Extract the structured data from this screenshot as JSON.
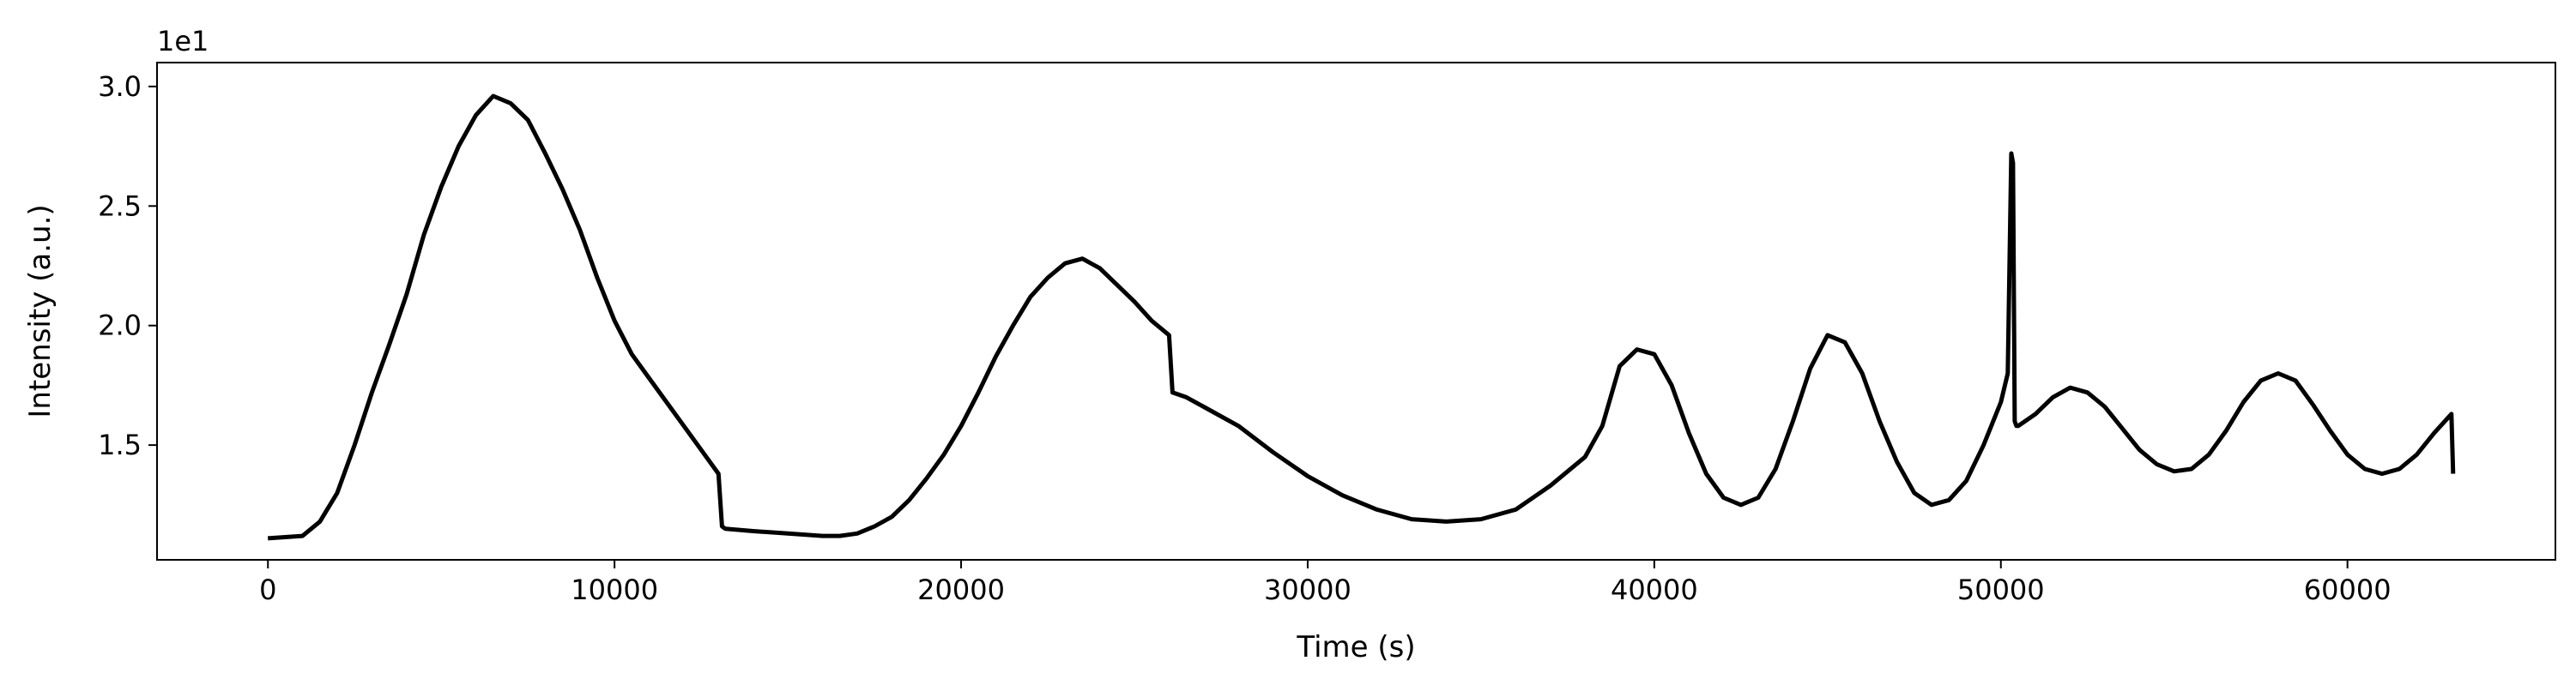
{
  "chart_data": {
    "type": "line",
    "title": "",
    "xlabel": "Time (s)",
    "ylabel": "Intensity (a.u.)",
    "y_offset_label": "1e1",
    "xlim": [
      -3200,
      66000
    ],
    "ylim": [
      1.02,
      3.1
    ],
    "x_ticks": [
      0,
      10000,
      20000,
      30000,
      40000,
      50000,
      60000
    ],
    "x_tick_labels": [
      "0",
      "10000",
      "20000",
      "30000",
      "40000",
      "50000",
      "60000"
    ],
    "y_ticks": [
      1.5,
      2.0,
      2.5,
      3.0
    ],
    "y_tick_labels": [
      "1.5",
      "2.0",
      "2.5",
      "3.0"
    ],
    "grid": false,
    "legend": "none",
    "line_color": "#000000",
    "series": [
      {
        "x": [
          0,
          1000,
          1500,
          2000,
          2500,
          3000,
          3500,
          4000,
          4500,
          5000,
          5500,
          6000,
          6500,
          7000,
          7500,
          8000,
          8500,
          9000,
          9500,
          10000,
          10500,
          11000,
          11500,
          12000,
          12500,
          13000,
          13100,
          13200,
          14000,
          15000,
          16000,
          16500,
          17000,
          17500,
          18000,
          18500,
          19000,
          19500,
          20000,
          20500,
          21000,
          21500,
          22000,
          22500,
          23000,
          23500,
          24000,
          24500,
          25000,
          25500,
          26000,
          26100,
          26500,
          27000,
          28000,
          29000,
          30000,
          31000,
          32000,
          33000,
          34000,
          35000,
          36000,
          37000,
          38000,
          38500,
          39000,
          39500,
          40000,
          40500,
          41000,
          41500,
          42000,
          42500,
          43000,
          43500,
          44000,
          44500,
          45000,
          45500,
          46000,
          46500,
          47000,
          47500,
          48000,
          48500,
          49000,
          49500,
          50000,
          50200,
          50300,
          50350,
          50400,
          50450,
          50500,
          51000,
          51500,
          52000,
          52500,
          53000,
          53500,
          54000,
          54500,
          55000,
          55500,
          56000,
          56500,
          57000,
          57500,
          58000,
          58500,
          59000,
          59500,
          60000,
          60500,
          61000,
          61500,
          62000,
          62500,
          63000,
          63050
        ],
        "y": [
          1.11,
          1.12,
          1.18,
          1.3,
          1.5,
          1.72,
          1.92,
          2.13,
          2.38,
          2.58,
          2.75,
          2.88,
          2.96,
          2.93,
          2.86,
          2.72,
          2.57,
          2.4,
          2.2,
          2.02,
          1.88,
          1.78,
          1.68,
          1.58,
          1.48,
          1.38,
          1.16,
          1.15,
          1.14,
          1.13,
          1.12,
          1.12,
          1.13,
          1.16,
          1.2,
          1.27,
          1.36,
          1.46,
          1.58,
          1.72,
          1.87,
          2.0,
          2.12,
          2.2,
          2.26,
          2.28,
          2.24,
          2.17,
          2.1,
          2.02,
          1.96,
          1.72,
          1.7,
          1.66,
          1.58,
          1.47,
          1.37,
          1.29,
          1.23,
          1.19,
          1.18,
          1.19,
          1.23,
          1.33,
          1.45,
          1.58,
          1.83,
          1.9,
          1.88,
          1.75,
          1.55,
          1.38,
          1.28,
          1.25,
          1.28,
          1.4,
          1.6,
          1.82,
          1.96,
          1.93,
          1.8,
          1.6,
          1.43,
          1.3,
          1.25,
          1.27,
          1.35,
          1.5,
          1.68,
          1.8,
          2.72,
          2.68,
          1.6,
          1.58,
          1.58,
          1.63,
          1.7,
          1.74,
          1.72,
          1.66,
          1.57,
          1.48,
          1.42,
          1.39,
          1.4,
          1.46,
          1.56,
          1.68,
          1.77,
          1.8,
          1.77,
          1.67,
          1.56,
          1.46,
          1.4,
          1.38,
          1.4,
          1.46,
          1.55,
          1.63,
          1.38
        ]
      }
    ]
  }
}
